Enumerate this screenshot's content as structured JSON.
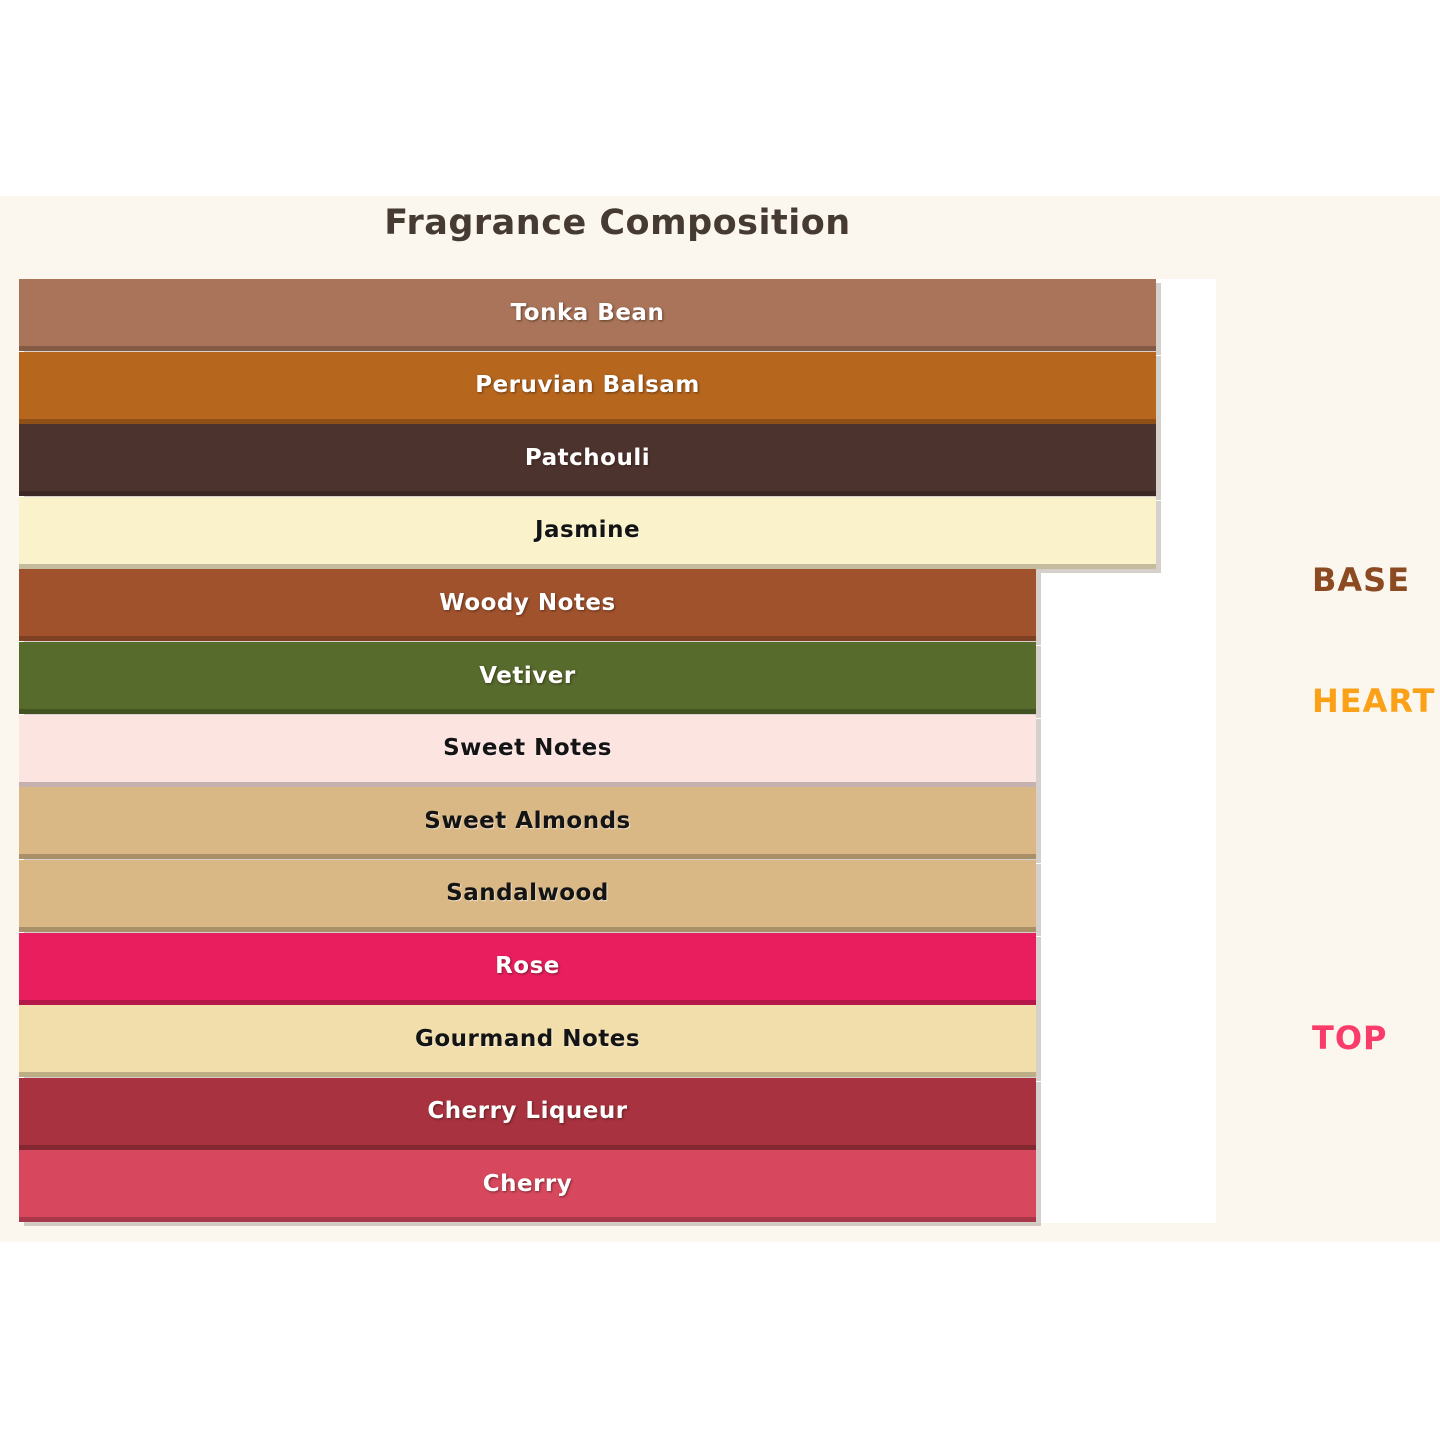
{
  "page": {
    "title": "Fragrance Composition"
  },
  "colors": {
    "page_background": "#FFFFFF",
    "band_background": "#FBF6EE",
    "plot_background": "#FFFFFF",
    "title_color": "#463B33"
  },
  "chart_data": {
    "type": "bar",
    "orientation": "horizontal",
    "title": "Fragrance Composition",
    "xlabel": "",
    "ylabel": "",
    "xlim": [
      0,
      100
    ],
    "grid": false,
    "axes_visible": false,
    "bars": [
      {
        "label": "Tonka Bean",
        "value": 95,
        "color": "#A97459",
        "label_color": "#FFFFFF",
        "group": "BASE"
      },
      {
        "label": "Peruvian Balsam",
        "value": 95,
        "color": "#B6661D",
        "label_color": "#FFFFFF",
        "group": "BASE"
      },
      {
        "label": "Patchouli",
        "value": 95,
        "color": "#4D332E",
        "label_color": "#FFFFFF",
        "group": "BASE"
      },
      {
        "label": "Jasmine",
        "value": 95,
        "color": "#FAF2CA",
        "label_color": "#141414",
        "group": "BASE"
      },
      {
        "label": "Woody Notes",
        "value": 85,
        "color": "#A0522D",
        "label_color": "#FFFFFF",
        "group": "HEART"
      },
      {
        "label": "Vetiver",
        "value": 85,
        "color": "#566B2C",
        "label_color": "#FFFFFF",
        "group": "HEART"
      },
      {
        "label": "Sweet Notes",
        "value": 85,
        "color": "#FCE4E1",
        "label_color": "#141414",
        "group": "HEART"
      },
      {
        "label": "Sweet Almonds",
        "value": 85,
        "color": "#D9B886",
        "label_color": "#141414",
        "group": "HEART"
      },
      {
        "label": "Sandalwood",
        "value": 85,
        "color": "#D9B886",
        "label_color": "#141414",
        "group": "HEART"
      },
      {
        "label": "Rose",
        "value": 85,
        "color": "#E91E5F",
        "label_color": "#FFFFFF",
        "group": "TOP"
      },
      {
        "label": "Gourmand Notes",
        "value": 85,
        "color": "#F2DEAB",
        "label_color": "#141414",
        "group": "TOP"
      },
      {
        "label": "Cherry Liqueur",
        "value": 85,
        "color": "#A8323F",
        "label_color": "#FFFFFF",
        "group": "TOP"
      },
      {
        "label": "Cherry",
        "value": 85,
        "color": "#D7485E",
        "label_color": "#FFFFFF",
        "group": "TOP"
      }
    ],
    "group_labels": [
      {
        "text": "BASE",
        "color": "#8B4A21",
        "y_center": 580
      },
      {
        "text": "HEART",
        "color": "#FBA118",
        "y_center": 701
      },
      {
        "text": "TOP",
        "color": "#F93C69",
        "y_center": 1038
      }
    ],
    "legend_position": "right"
  }
}
